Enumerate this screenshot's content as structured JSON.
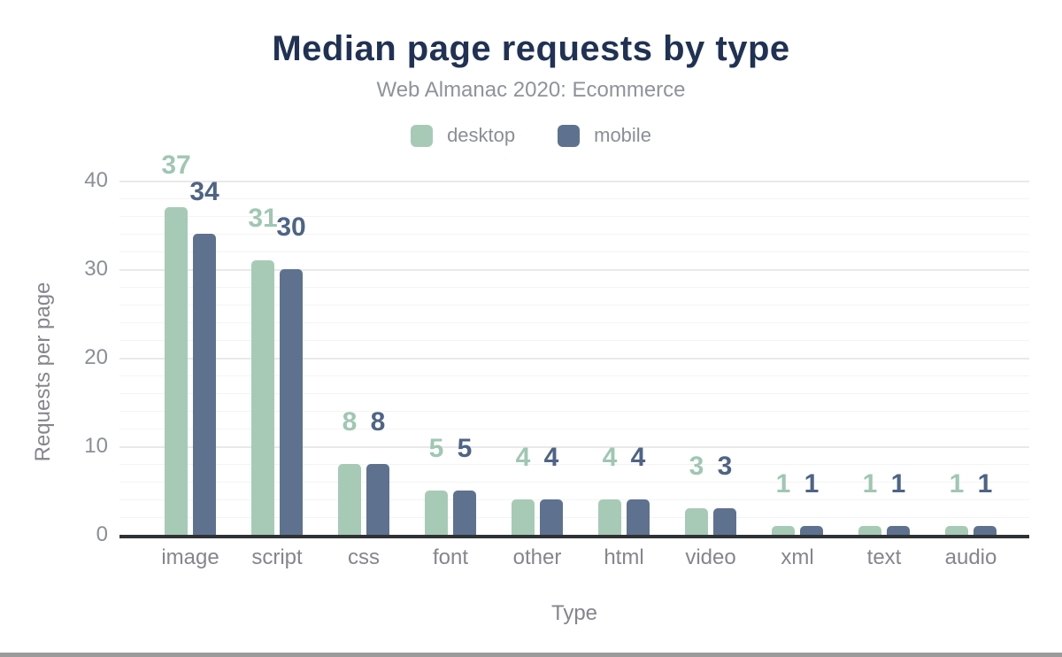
{
  "title": "Median page requests by type",
  "subtitle": "Web Almanac 2020: Ecommerce",
  "legend": [
    {
      "label": "desktop",
      "color": "#a7cab6"
    },
    {
      "label": "mobile",
      "color": "#5e7290"
    }
  ],
  "chart_data": {
    "type": "bar",
    "title": "Median page requests by type",
    "subtitle": "Web Almanac 2020: Ecommerce",
    "categories": [
      "image",
      "script",
      "css",
      "font",
      "other",
      "html",
      "video",
      "xml",
      "text",
      "audio"
    ],
    "series": [
      {
        "name": "desktop",
        "color": "#a7cab6",
        "label_color": "#9fc7b2",
        "values": [
          37,
          31,
          8,
          5,
          4,
          4,
          3,
          1,
          1,
          1
        ]
      },
      {
        "name": "mobile",
        "color": "#5e7290",
        "label_color": "#4e6486",
        "values": [
          34,
          30,
          8,
          5,
          4,
          4,
          3,
          1,
          1,
          1
        ]
      }
    ],
    "xlabel": "Type",
    "ylabel": "Requests per page",
    "ylim": [
      0,
      40
    ],
    "yticks": [
      0,
      10,
      20,
      30,
      40
    ],
    "grid": "horizontal minor gridlines every 2 units, major every 10",
    "legend_position": "top center",
    "data_labels": true
  },
  "colors": {
    "title": "#203254",
    "subtitle": "#8f939b",
    "axis_text": "#85858d",
    "tick_text": "#8b8f96",
    "axis_line": "#2f3235",
    "gridline_minor": "#f4f4f4",
    "gridline_major": "#e9e9e9",
    "background": "#ffffff"
  }
}
